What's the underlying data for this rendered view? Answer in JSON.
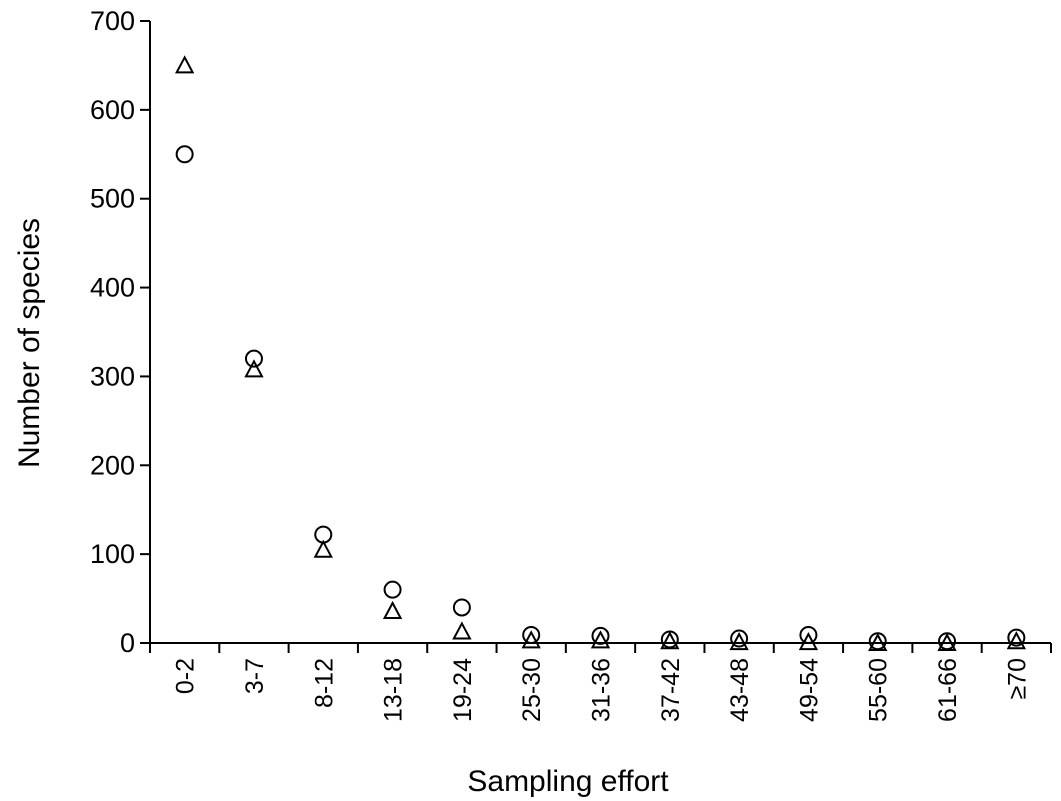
{
  "chart_data": {
    "type": "scatter",
    "title": "",
    "xlabel": "Sampling effort",
    "ylabel": "Number of species",
    "categories": [
      "0-2",
      "3-7",
      "8-12",
      "13-18",
      "19-24",
      "25-30",
      "31-36",
      "37-42",
      "43-48",
      "49-54",
      "55-60",
      "61-66",
      "≥70"
    ],
    "ylim": [
      0,
      700
    ],
    "yticks": [
      0,
      100,
      200,
      300,
      400,
      500,
      600,
      700
    ],
    "grid": false,
    "series": [
      {
        "marker": "triangle",
        "values": [
          650,
          308,
          105,
          36,
          13,
          3,
          3,
          2,
          1,
          1,
          0,
          0,
          2
        ]
      },
      {
        "marker": "circle",
        "values": [
          550,
          320,
          122,
          60,
          40,
          9,
          8,
          4,
          5,
          9,
          2,
          2,
          6
        ]
      }
    ]
  }
}
